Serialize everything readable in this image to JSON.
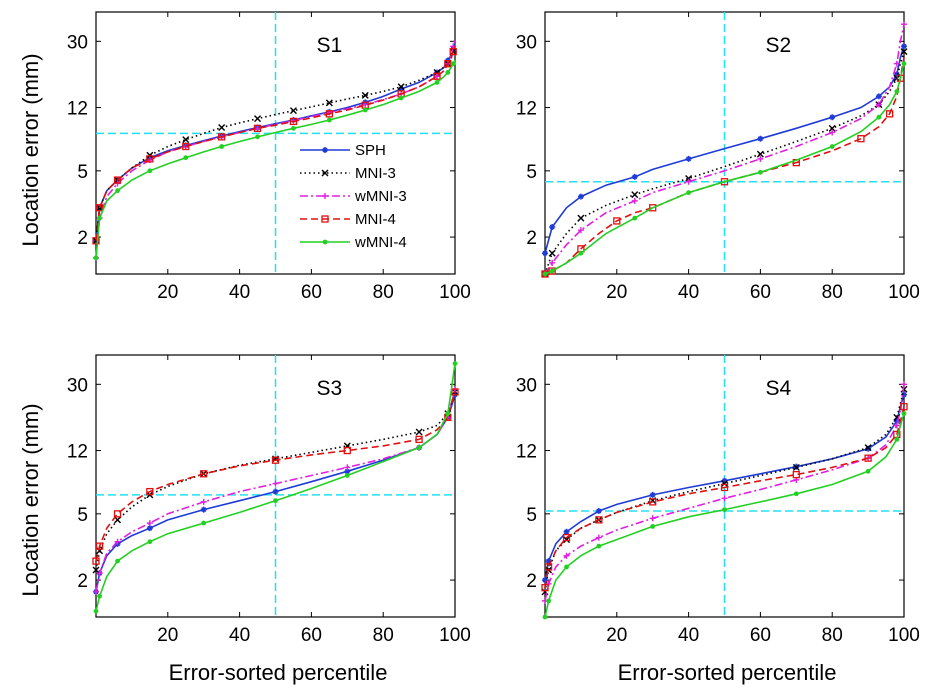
{
  "figure": {
    "xlabel": "Error-sorted percentile",
    "ylabel": "Location error (mm)"
  },
  "chart_data": [
    {
      "type": "line",
      "title": "S1",
      "xlabel": "Error-sorted percentile",
      "ylabel": "Location error (mm)",
      "xlim": [
        0,
        100
      ],
      "ylim": [
        1.2,
        45
      ],
      "yscale": "log",
      "xticks": [
        20,
        40,
        60,
        80,
        100
      ],
      "yticks": [
        2,
        5,
        12,
        30
      ],
      "legend_position": "center",
      "reference_lines": {
        "x": 50,
        "y": 8.4
      },
      "series": [
        {
          "name": "SPH",
          "color": "#1f3bd6",
          "dash": "solid",
          "marker": "star",
          "x": [
            0,
            1,
            3,
            6,
            10,
            15,
            20,
            25,
            30,
            35,
            40,
            45,
            50,
            55,
            60,
            65,
            70,
            75,
            80,
            85,
            90,
            95,
            97,
            98,
            99,
            99.5,
            100
          ],
          "y": [
            1.9,
            3.0,
            3.8,
            4.4,
            5.2,
            6.0,
            6.6,
            7.1,
            7.6,
            8.1,
            8.6,
            9.1,
            9.6,
            10.1,
            10.7,
            11.3,
            12.0,
            12.9,
            14.0,
            15.5,
            17.0,
            19.5,
            21,
            23,
            25,
            27,
            29
          ]
        },
        {
          "name": "MNI-3",
          "color": "#000000",
          "dash": "dotted",
          "marker": "x",
          "x": [
            0,
            1,
            3,
            6,
            10,
            15,
            20,
            25,
            30,
            35,
            40,
            45,
            50,
            55,
            60,
            65,
            70,
            75,
            80,
            85,
            90,
            95,
            97,
            98,
            99,
            99.5,
            100
          ],
          "y": [
            1.9,
            3.0,
            3.8,
            4.4,
            5.2,
            6.2,
            7.0,
            7.7,
            8.4,
            9.1,
            9.7,
            10.3,
            10.9,
            11.5,
            12.1,
            12.8,
            13.5,
            14.2,
            15.0,
            16.0,
            17.5,
            19.5,
            21,
            22,
            24,
            26,
            28
          ]
        },
        {
          "name": "wMNI-3",
          "color": "#e020e0",
          "dash": "dashdot",
          "marker": "plus",
          "x": [
            0,
            1,
            3,
            6,
            10,
            15,
            20,
            25,
            30,
            35,
            40,
            45,
            50,
            55,
            60,
            65,
            70,
            75,
            80,
            85,
            90,
            95,
            97,
            98,
            99,
            99.5,
            100
          ],
          "y": [
            1.5,
            2.6,
            3.5,
            4.2,
            5.0,
            5.8,
            6.5,
            7.0,
            7.5,
            8.0,
            8.5,
            9.0,
            9.5,
            10.0,
            10.6,
            11.2,
            11.8,
            12.5,
            13.4,
            14.5,
            16.0,
            18.5,
            20,
            22,
            25,
            28,
            31
          ]
        },
        {
          "name": "MNI-4",
          "color": "#e01010",
          "dash": "dashed",
          "marker": "square",
          "x": [
            0,
            1,
            3,
            6,
            10,
            15,
            20,
            25,
            30,
            35,
            40,
            45,
            50,
            55,
            60,
            65,
            70,
            75,
            80,
            85,
            90,
            95,
            97,
            98,
            99,
            99.5,
            100
          ],
          "y": [
            1.9,
            3.0,
            3.8,
            4.4,
            5.2,
            5.9,
            6.5,
            7.0,
            7.5,
            8.0,
            8.5,
            9.0,
            9.4,
            9.9,
            10.4,
            11.0,
            11.6,
            12.4,
            13.3,
            14.5,
            16.0,
            18.5,
            20,
            22,
            24,
            26,
            28
          ]
        },
        {
          "name": "wMNI-4",
          "color": "#22d022",
          "dash": "solid",
          "marker": "dot",
          "x": [
            0,
            1,
            3,
            6,
            10,
            15,
            20,
            25,
            30,
            35,
            40,
            45,
            50,
            55,
            60,
            65,
            70,
            75,
            80,
            85,
            90,
            95,
            97,
            98,
            99,
            99.5,
            100
          ],
          "y": [
            1.5,
            2.6,
            3.3,
            3.8,
            4.4,
            5.0,
            5.5,
            6.0,
            6.5,
            7.0,
            7.5,
            8.0,
            8.5,
            9.0,
            9.5,
            10.1,
            10.8,
            11.6,
            12.5,
            13.7,
            15.0,
            17.0,
            18.5,
            19.5,
            21,
            22,
            23
          ]
        }
      ]
    },
    {
      "type": "line",
      "title": "S2",
      "xlabel": "Error-sorted percentile",
      "ylabel": "Location error (mm)",
      "xlim": [
        0,
        100
      ],
      "ylim": [
        1.2,
        45
      ],
      "yscale": "log",
      "xticks": [
        20,
        40,
        60,
        80,
        100
      ],
      "yticks": [
        2,
        5,
        12,
        30
      ],
      "reference_lines": {
        "x": 50,
        "y": 4.3
      },
      "series": [
        {
          "name": "SPH",
          "color": "#1f3bd6",
          "dash": "solid",
          "marker": "star",
          "x": [
            0,
            2,
            6,
            10,
            17,
            25,
            30,
            40,
            50,
            60,
            70,
            80,
            88,
            93,
            96,
            98,
            99,
            100
          ],
          "y": [
            1.6,
            2.3,
            3.0,
            3.5,
            4.1,
            4.6,
            5.1,
            5.9,
            6.8,
            7.8,
            9.0,
            10.5,
            12.0,
            14.0,
            16,
            19,
            24,
            28
          ]
        },
        {
          "name": "MNI-3",
          "color": "#000000",
          "dash": "dotted",
          "marker": "x",
          "x": [
            0,
            2,
            6,
            10,
            17,
            25,
            30,
            40,
            50,
            60,
            70,
            80,
            88,
            93,
            96,
            98,
            99,
            100
          ],
          "y": [
            1.2,
            1.6,
            2.1,
            2.6,
            3.1,
            3.6,
            3.9,
            4.5,
            5.3,
            6.3,
            7.5,
            9.0,
            10.7,
            12.5,
            15,
            18,
            22,
            26
          ]
        },
        {
          "name": "wMNI-3",
          "color": "#e020e0",
          "dash": "dashdot",
          "marker": "plus",
          "x": [
            0,
            2,
            6,
            10,
            17,
            25,
            30,
            40,
            50,
            60,
            70,
            80,
            88,
            93,
            96,
            98,
            99,
            100
          ],
          "y": [
            1.2,
            1.4,
            1.8,
            2.2,
            2.8,
            3.3,
            3.7,
            4.3,
            5.0,
            5.9,
            7.0,
            8.5,
            10.3,
            12.5,
            16,
            22,
            30,
            38
          ]
        },
        {
          "name": "MNI-4",
          "color": "#e01010",
          "dash": "dashed",
          "marker": "square",
          "x": [
            0,
            2,
            6,
            10,
            15,
            20,
            25,
            30,
            40,
            50,
            60,
            70,
            80,
            88,
            93,
            96,
            98,
            99,
            100
          ],
          "y": [
            1.2,
            1.25,
            1.4,
            1.7,
            2.1,
            2.5,
            2.8,
            3.0,
            3.7,
            4.3,
            4.9,
            5.6,
            6.6,
            7.8,
            9.2,
            11,
            14,
            18,
            24
          ]
        },
        {
          "name": "wMNI-4",
          "color": "#22d022",
          "dash": "solid",
          "marker": "dot",
          "x": [
            0,
            2,
            6,
            10,
            17,
            25,
            30,
            40,
            50,
            60,
            70,
            80,
            88,
            93,
            96,
            98,
            99,
            100
          ],
          "y": [
            1.2,
            1.25,
            1.4,
            1.6,
            2.1,
            2.6,
            3.0,
            3.7,
            4.3,
            4.9,
            5.8,
            7.0,
            8.6,
            10.5,
            12.5,
            15,
            18,
            22
          ]
        }
      ]
    },
    {
      "type": "line",
      "title": "S3",
      "xlabel": "Error-sorted percentile",
      "ylabel": "Location error (mm)",
      "xlim": [
        0,
        100
      ],
      "ylim": [
        1.2,
        45
      ],
      "yscale": "log",
      "xticks": [
        20,
        40,
        60,
        80,
        100
      ],
      "yticks": [
        2,
        5,
        12,
        30
      ],
      "reference_lines": {
        "x": 50,
        "y": 6.5
      },
      "series": [
        {
          "name": "SPH",
          "color": "#1f3bd6",
          "dash": "solid",
          "marker": "star",
          "x": [
            0,
            1,
            3,
            6,
            10,
            15,
            20,
            30,
            40,
            50,
            60,
            70,
            80,
            90,
            95,
            98,
            99,
            100
          ],
          "y": [
            1.7,
            2.2,
            2.8,
            3.3,
            3.7,
            4.1,
            4.6,
            5.3,
            6.0,
            6.8,
            7.8,
            9.0,
            10.5,
            12.5,
            15,
            19,
            22,
            26
          ]
        },
        {
          "name": "MNI-3",
          "color": "#000000",
          "dash": "dotted",
          "marker": "x",
          "x": [
            0,
            1,
            3,
            6,
            10,
            15,
            20,
            30,
            40,
            50,
            60,
            70,
            80,
            90,
            95,
            98,
            99,
            100
          ],
          "y": [
            2.3,
            3.0,
            3.8,
            4.6,
            5.5,
            6.5,
            7.3,
            8.7,
            9.8,
            10.7,
            11.7,
            12.8,
            14.0,
            15.5,
            17,
            20,
            23,
            27
          ]
        },
        {
          "name": "wMNI-3",
          "color": "#e020e0",
          "dash": "dashdot",
          "marker": "plus",
          "x": [
            0,
            1,
            3,
            6,
            10,
            15,
            20,
            30,
            40,
            50,
            60,
            70,
            80,
            90,
            95,
            98,
            99,
            100
          ],
          "y": [
            1.7,
            2.2,
            2.9,
            3.4,
            3.9,
            4.4,
            5.0,
            5.9,
            6.8,
            7.6,
            8.5,
            9.5,
            10.7,
            12.5,
            15,
            19,
            23,
            28
          ]
        },
        {
          "name": "MNI-4",
          "color": "#e01010",
          "dash": "dashed",
          "marker": "square",
          "x": [
            0,
            1,
            3,
            6,
            10,
            15,
            20,
            30,
            40,
            50,
            60,
            70,
            80,
            90,
            95,
            98,
            99,
            100
          ],
          "y": [
            2.6,
            3.2,
            4.1,
            5.0,
            5.9,
            6.8,
            7.5,
            8.7,
            9.7,
            10.5,
            11.3,
            12.0,
            12.8,
            14.0,
            16,
            19,
            23,
            27
          ]
        },
        {
          "name": "wMNI-4",
          "color": "#22d022",
          "dash": "solid",
          "marker": "dot",
          "x": [
            0,
            1,
            3,
            6,
            10,
            15,
            20,
            30,
            40,
            50,
            60,
            70,
            80,
            90,
            95,
            98,
            99,
            100
          ],
          "y": [
            1.3,
            1.6,
            2.1,
            2.6,
            3.0,
            3.4,
            3.8,
            4.4,
            5.1,
            6.0,
            7.1,
            8.5,
            10.3,
            12.5,
            15,
            20,
            28,
            40
          ]
        }
      ]
    },
    {
      "type": "line",
      "title": "S4",
      "xlabel": "Error-sorted percentile",
      "ylabel": "Location error (mm)",
      "xlim": [
        0,
        100
      ],
      "ylim": [
        1.2,
        45
      ],
      "yscale": "log",
      "xticks": [
        20,
        40,
        60,
        80,
        100
      ],
      "yticks": [
        2,
        5,
        12,
        30
      ],
      "reference_lines": {
        "x": 50,
        "y": 5.2
      },
      "series": [
        {
          "name": "SPH",
          "color": "#1f3bd6",
          "dash": "solid",
          "marker": "star",
          "x": [
            0,
            1,
            3,
            6,
            10,
            15,
            20,
            30,
            40,
            50,
            60,
            70,
            80,
            90,
            95,
            98,
            99,
            100
          ],
          "y": [
            2.0,
            2.6,
            3.3,
            3.9,
            4.5,
            5.2,
            5.7,
            6.5,
            7.2,
            7.9,
            8.7,
            9.6,
            10.7,
            12.3,
            14.5,
            18,
            22,
            26
          ]
        },
        {
          "name": "MNI-3",
          "color": "#000000",
          "dash": "dotted",
          "marker": "x",
          "x": [
            0,
            1,
            3,
            6,
            10,
            15,
            20,
            30,
            40,
            50,
            60,
            70,
            80,
            90,
            95,
            98,
            99,
            100
          ],
          "y": [
            1.7,
            2.3,
            3.0,
            3.5,
            4.1,
            4.6,
            5.1,
            6.0,
            6.8,
            7.6,
            8.5,
            9.5,
            10.7,
            12.5,
            15,
            19,
            23,
            28
          ]
        },
        {
          "name": "wMNI-3",
          "color": "#e020e0",
          "dash": "dashdot",
          "marker": "plus",
          "x": [
            0,
            1,
            3,
            6,
            10,
            15,
            20,
            30,
            40,
            50,
            60,
            70,
            80,
            90,
            95,
            98,
            99,
            100
          ],
          "y": [
            1.5,
            1.9,
            2.4,
            2.8,
            3.2,
            3.6,
            4.0,
            4.7,
            5.4,
            6.2,
            7.0,
            8.0,
            9.2,
            10.8,
            13,
            17,
            21,
            30
          ]
        },
        {
          "name": "MNI-4",
          "color": "#e01010",
          "dash": "dashed",
          "marker": "square",
          "x": [
            0,
            1,
            3,
            6,
            10,
            15,
            20,
            30,
            40,
            50,
            60,
            70,
            80,
            90,
            95,
            98,
            99,
            100
          ],
          "y": [
            1.8,
            2.4,
            3.0,
            3.6,
            4.1,
            4.6,
            5.1,
            5.9,
            6.6,
            7.2,
            7.9,
            8.6,
            9.5,
            10.8,
            12.5,
            15,
            18,
            22
          ]
        },
        {
          "name": "wMNI-4",
          "color": "#22d022",
          "dash": "solid",
          "marker": "dot",
          "x": [
            0,
            1,
            3,
            6,
            10,
            15,
            20,
            30,
            40,
            50,
            60,
            70,
            80,
            90,
            95,
            98,
            99,
            100
          ],
          "y": [
            1.2,
            1.5,
            2.0,
            2.4,
            2.8,
            3.2,
            3.5,
            4.2,
            4.8,
            5.3,
            5.9,
            6.6,
            7.5,
            9.0,
            11,
            14,
            17,
            20
          ]
        }
      ]
    }
  ]
}
